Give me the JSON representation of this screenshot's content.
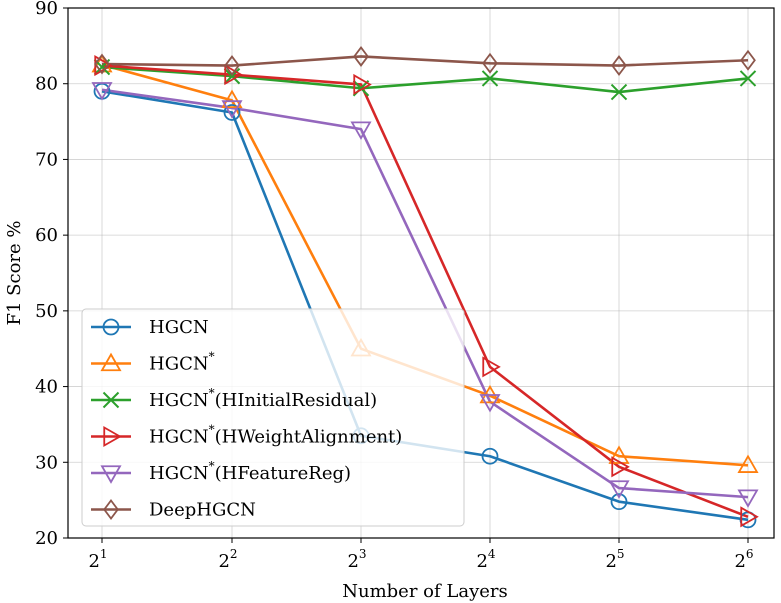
{
  "chart_data": {
    "type": "line",
    "title": "",
    "xlabel": "Number of Layers",
    "ylabel": "F1 Score %",
    "ylim": [
      20,
      90
    ],
    "grid": true,
    "legend_position": "lower-left",
    "x": [
      1,
      2,
      3,
      4,
      5,
      6
    ],
    "x_tick_labels": [
      {
        "base": "2",
        "exp": "1"
      },
      {
        "base": "2",
        "exp": "2"
      },
      {
        "base": "2",
        "exp": "3"
      },
      {
        "base": "2",
        "exp": "4"
      },
      {
        "base": "2",
        "exp": "5"
      },
      {
        "base": "2",
        "exp": "6"
      }
    ],
    "y_ticks": [
      20,
      30,
      40,
      50,
      60,
      70,
      80,
      90
    ],
    "series": [
      {
        "name": "HGCN",
        "sup": "",
        "suffix": "",
        "marker": "circle",
        "color": "#1f77b4",
        "values": [
          79.0,
          76.2,
          33.5,
          30.8,
          24.8,
          22.4
        ]
      },
      {
        "name": "HGCN",
        "sup": "*",
        "suffix": "",
        "marker": "triangle-up",
        "color": "#ff7f0e",
        "values": [
          82.5,
          77.8,
          45.0,
          38.8,
          30.8,
          29.6
        ]
      },
      {
        "name": "HGCN",
        "sup": "*",
        "suffix": "(HInitialResidual)",
        "marker": "x",
        "color": "#2ca02c",
        "values": [
          82.2,
          81.0,
          79.4,
          80.7,
          78.9,
          80.7
        ]
      },
      {
        "name": "HGCN",
        "sup": "*",
        "suffix": "(HWeightAlignment)",
        "marker": "triangle-right",
        "color": "#d62728",
        "values": [
          82.4,
          81.2,
          79.9,
          42.6,
          29.4,
          22.8
        ]
      },
      {
        "name": "HGCN",
        "sup": "*",
        "suffix": "(HFeatureReg)",
        "marker": "triangle-down",
        "color": "#9467bd",
        "values": [
          79.2,
          76.8,
          74.0,
          38.0,
          26.6,
          25.4
        ]
      },
      {
        "name": "DeepHGCN",
        "sup": "",
        "suffix": "",
        "marker": "diamond",
        "color": "#8c564b",
        "values": [
          82.6,
          82.4,
          83.6,
          82.7,
          82.4,
          83.1
        ]
      }
    ]
  }
}
